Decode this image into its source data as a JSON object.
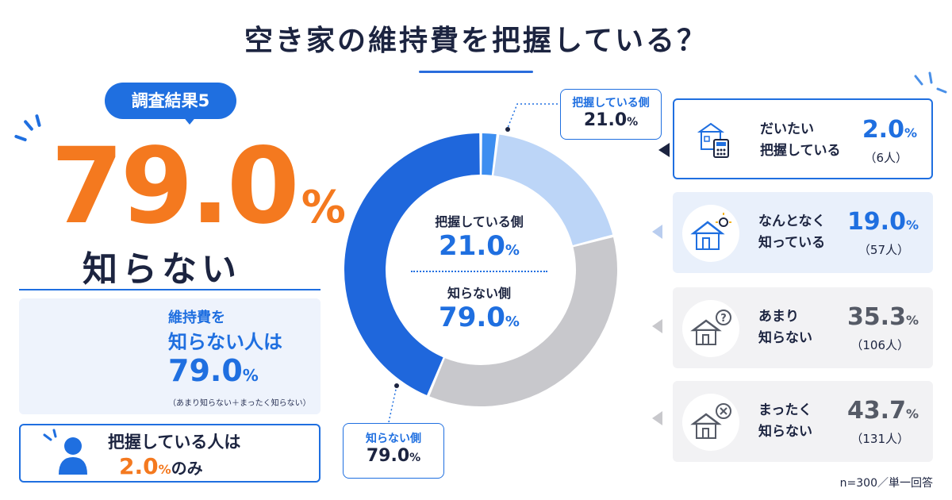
{
  "title": "空き家の維持費を把握している？",
  "left": {
    "badge": "調査結果5",
    "big_value": "79.0",
    "big_unit": "%",
    "big_label": "知らない",
    "box_a": {
      "line1": "維持費を",
      "line2": "知らない人は",
      "value": "79.0",
      "unit": "%",
      "note": "（あまり知らない＋まったく知らない）",
      "coin_symbol": "¥"
    },
    "box_b": {
      "line1": "把握している人は",
      "value": "2.0",
      "unit": "%",
      "suffix": "のみ"
    }
  },
  "donut": {
    "callout_top": {
      "label": "把握している側",
      "value": "21.0",
      "unit": "%"
    },
    "callout_bottom": {
      "label": "知らない側",
      "value": "79.0",
      "unit": "%"
    },
    "center_top": {
      "label": "把握している側",
      "value": "21.0",
      "unit": "%"
    },
    "center_bottom": {
      "label": "知らない側",
      "value": "79.0",
      "unit": "%"
    }
  },
  "chart_data": {
    "type": "pie",
    "donut": true,
    "categories": [
      "だいたい把握している",
      "なんとなく知っている",
      "あまり知らない",
      "まったく知らない"
    ],
    "values": [
      2.0,
      19.0,
      35.3,
      43.7
    ],
    "counts": [
      "6人",
      "57人",
      "106人",
      "131人"
    ],
    "colors": [
      "#3d8ef0",
      "#bcd5f7",
      "#c8c8cc",
      "#1f67dc"
    ],
    "groups": [
      {
        "name": "把握している側",
        "value": 21.0
      },
      {
        "name": "知らない側",
        "value": 79.0
      }
    ]
  },
  "rows": [
    {
      "line1": "だいたい",
      "line2": "把握している",
      "value": "2.0",
      "unit": "%",
      "count": "（6人）",
      "icon": "house-calculator-icon",
      "pct_color": "#1f6fe0",
      "bg": "#eef3fc"
    },
    {
      "line1": "なんとなく",
      "line2": "知っている",
      "value": "19.0",
      "unit": "%",
      "count": "（57人）",
      "icon": "house-lightbulb-icon",
      "pct_color": "#1f6fe0",
      "bg": "#e9f0fb"
    },
    {
      "line1": "あまり",
      "line2": "知らない",
      "value": "35.3",
      "unit": "%",
      "count": "（106人）",
      "icon": "house-question-icon",
      "pct_color": "#555a66",
      "bg": "#f2f2f4"
    },
    {
      "line1": "まったく",
      "line2": "知らない",
      "value": "43.7",
      "unit": "%",
      "count": "（131人）",
      "icon": "house-cross-icon",
      "pct_color": "#555a66",
      "bg": "#f2f2f4"
    }
  ],
  "footer": "n=300／単一回答",
  "colors": {
    "accent": "#1f6fe0",
    "orange": "#f4791f",
    "navy": "#1c2440"
  }
}
